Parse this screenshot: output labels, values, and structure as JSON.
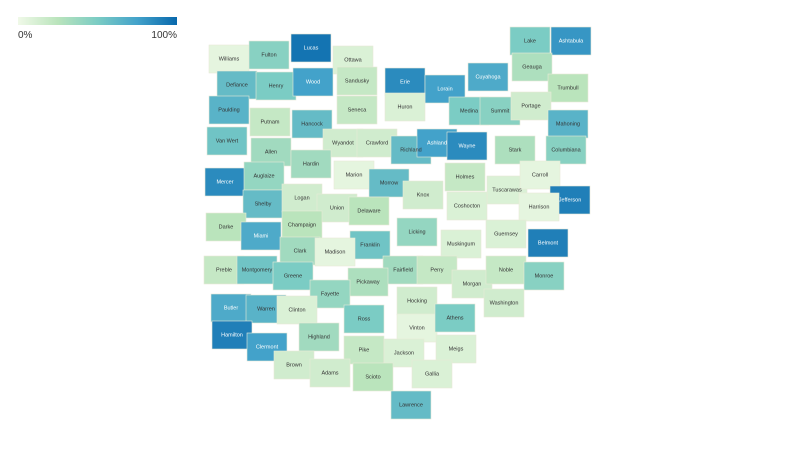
{
  "chart_data": {
    "type": "choropleth",
    "regions": [
      "Williams",
      "Fulton",
      "Lucas",
      "Ottawa",
      "Lake",
      "Ashtabula",
      "Defiance",
      "Henry",
      "Wood",
      "Sandusky",
      "Erie",
      "Lorain",
      "Cuyahoga",
      "Geauga",
      "Trumbull",
      "Paulding",
      "Putnam",
      "Hancock",
      "Seneca",
      "Huron",
      "Medina",
      "Summit",
      "Portage",
      "Mahoning",
      "Van Wert",
      "Allen",
      "Wyandot",
      "Crawford",
      "Richland",
      "Ashland",
      "Wayne",
      "Stark",
      "Columbiana",
      "Mercer",
      "Auglaize",
      "Hardin",
      "Marion",
      "Morrow",
      "Knox",
      "Holmes",
      "Tuscarawas",
      "Carroll",
      "Jefferson",
      "Shelby",
      "Logan",
      "Union",
      "Delaware",
      "Coshocton",
      "Harrison",
      "Darke",
      "Champaign",
      "Licking",
      "Guernsey",
      "Muskingum",
      "Belmont",
      "Miami",
      "Clark",
      "Franklin",
      "Madison",
      "Preble",
      "Montgomery",
      "Greene",
      "Fairfield",
      "Perry",
      "Morgan",
      "Noble",
      "Monroe",
      "Pickaway",
      "Fayette",
      "Butler",
      "Warren",
      "Clinton",
      "Hocking",
      "Washington",
      "Ross",
      "Vinton",
      "Athens",
      "Hamilton",
      "Clermont",
      "Highland",
      "Pike",
      "Meigs",
      "Jackson",
      "Brown",
      "Adams",
      "Scioto",
      "Gallia",
      "Lawrence"
    ],
    "values": [
      5,
      45,
      95,
      10,
      50,
      80,
      60,
      50,
      75,
      20,
      85,
      75,
      70,
      30,
      25,
      65,
      20,
      60,
      20,
      10,
      50,
      45,
      15,
      65,
      55,
      35,
      15,
      15,
      60,
      75,
      85,
      30,
      45,
      85,
      40,
      35,
      5,
      60,
      15,
      20,
      10,
      5,
      90,
      60,
      15,
      15,
      25,
      10,
      5,
      25,
      25,
      40,
      10,
      10,
      90,
      70,
      35,
      55,
      5,
      20,
      55,
      50,
      35,
      20,
      15,
      20,
      45,
      30,
      40,
      70,
      65,
      10,
      15,
      15,
      50,
      5,
      50,
      90,
      75,
      35,
      20,
      10,
      10,
      15,
      15,
      25,
      10,
      60
    ],
    "clim": [
      0,
      100
    ],
    "colorscale": [
      "#f0f9e8",
      "#bae4bc",
      "#7bccc4",
      "#43a2ca",
      "#0868ac"
    ],
    "colorbar_ticks": [
      {
        "value": 0,
        "label": "0%"
      },
      {
        "value": 100,
        "label": "100%"
      }
    ]
  }
}
